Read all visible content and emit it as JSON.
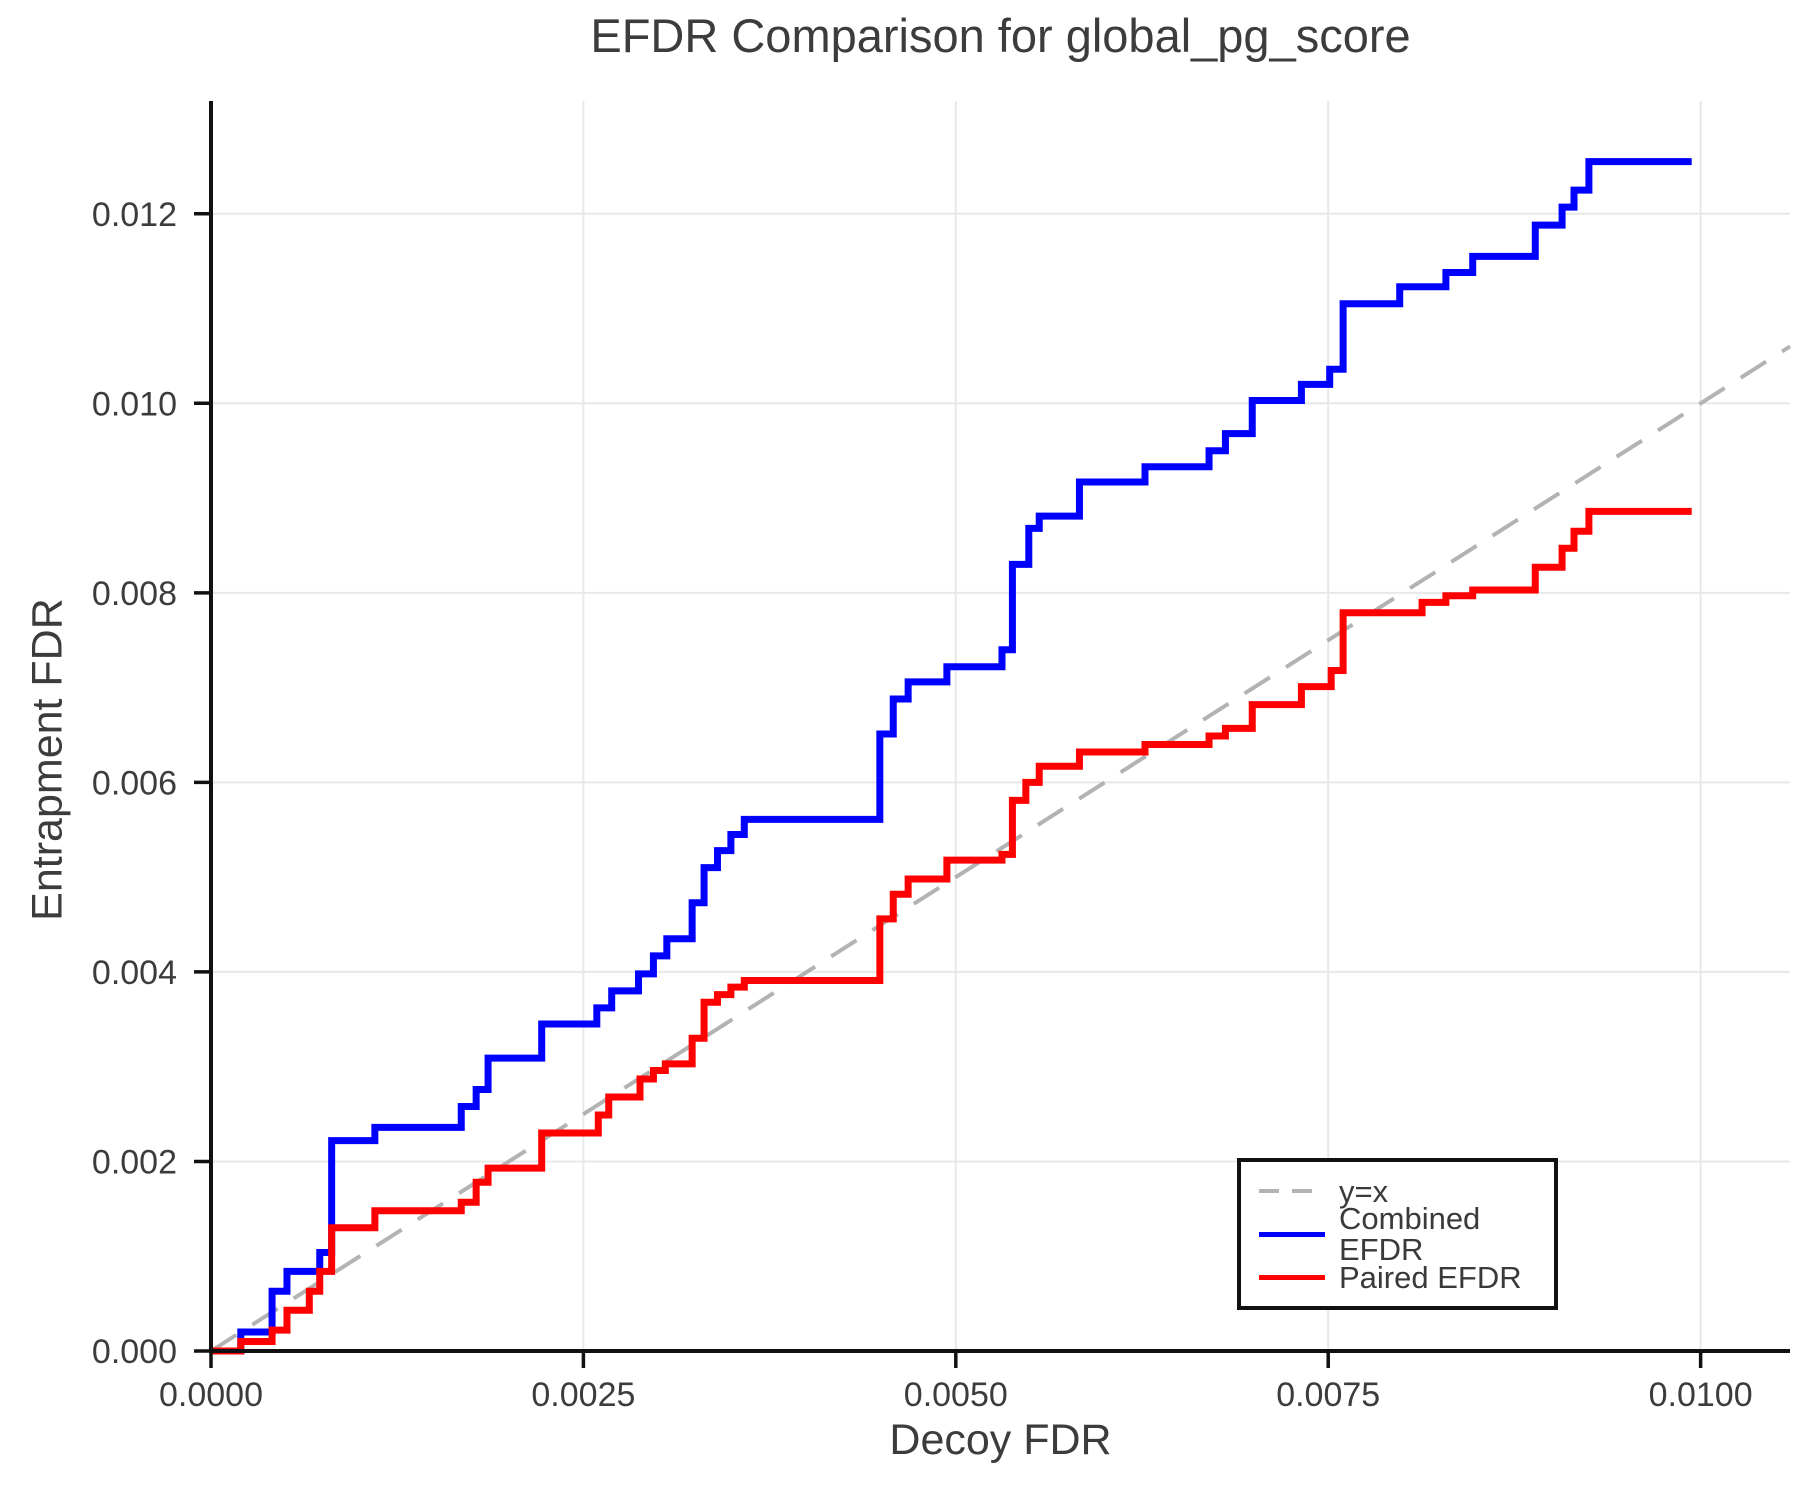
{
  "figure": {
    "title": "EFDR Comparison for global_pg_score"
  },
  "chart_data": {
    "type": "line",
    "subtype": "step-post",
    "title": "EFDR Comparison for global_pg_score",
    "xlabel": "Decoy FDR",
    "ylabel": "Entrapment FDR",
    "xlim": [
      0,
      0.0106
    ],
    "ylim": [
      0,
      0.01319
    ],
    "grid": true,
    "legend_position": "lower right",
    "x_ticks": {
      "values": [
        0.0,
        0.0025,
        0.005,
        0.0075,
        0.01
      ],
      "labels": [
        "0.0000",
        "0.0025",
        "0.0050",
        "0.0075",
        "0.0100"
      ]
    },
    "y_ticks": {
      "values": [
        0.0,
        0.002,
        0.004,
        0.006,
        0.008,
        0.01,
        0.012
      ],
      "labels": [
        "0.000",
        "0.002",
        "0.004",
        "0.006",
        "0.008",
        "0.010",
        "0.012"
      ]
    },
    "series": [
      {
        "name": "y=x",
        "type": "reference-diagonal",
        "style": "dashed",
        "color": "#b3b3b3",
        "from": [
          0,
          0
        ],
        "to": [
          0.0106,
          0.0106
        ]
      },
      {
        "name": "Combined EFDR",
        "type": "step",
        "style": "solid",
        "color": "#0000ff",
        "start": [
          0,
          0
        ],
        "end_x": 0.00994,
        "points": [
          [
            0.0002,
            0.0002
          ],
          [
            0.00041,
            0.00063
          ],
          [
            0.00051,
            0.00084
          ],
          [
            0.00073,
            0.00104
          ],
          [
            0.00081,
            0.00222
          ],
          [
            0.0011,
            0.00236
          ],
          [
            0.00168,
            0.00258
          ],
          [
            0.00178,
            0.00276
          ],
          [
            0.00186,
            0.00309
          ],
          [
            0.00222,
            0.00345
          ],
          [
            0.00259,
            0.00362
          ],
          [
            0.00269,
            0.0038
          ],
          [
            0.00287,
            0.00398
          ],
          [
            0.00297,
            0.00417
          ],
          [
            0.00306,
            0.00435
          ],
          [
            0.00323,
            0.00473
          ],
          [
            0.00331,
            0.0051
          ],
          [
            0.0034,
            0.00528
          ],
          [
            0.00349,
            0.00545
          ],
          [
            0.00358,
            0.00561
          ],
          [
            0.00449,
            0.00651
          ],
          [
            0.00458,
            0.00688
          ],
          [
            0.00468,
            0.00706
          ],
          [
            0.00494,
            0.00722
          ],
          [
            0.00531,
            0.0074
          ],
          [
            0.00538,
            0.0083
          ],
          [
            0.00549,
            0.00868
          ],
          [
            0.00556,
            0.00881
          ],
          [
            0.00583,
            0.00917
          ],
          [
            0.00627,
            0.00933
          ],
          [
            0.0067,
            0.0095
          ],
          [
            0.00681,
            0.00968
          ],
          [
            0.00699,
            0.01003
          ],
          [
            0.00732,
            0.0102
          ],
          [
            0.00751,
            0.01036
          ],
          [
            0.0076,
            0.01105
          ],
          [
            0.00798,
            0.01123
          ],
          [
            0.00829,
            0.01138
          ],
          [
            0.00847,
            0.01155
          ],
          [
            0.00889,
            0.01188
          ],
          [
            0.00907,
            0.01207
          ],
          [
            0.00915,
            0.01225
          ],
          [
            0.00925,
            0.01255
          ]
        ]
      },
      {
        "name": "Paired EFDR",
        "type": "step",
        "style": "solid",
        "color": "#ff0000",
        "start": [
          0,
          0
        ],
        "end_x": 0.00994,
        "points": [
          [
            0.0002,
            0.0001
          ],
          [
            0.00041,
            0.00022
          ],
          [
            0.00051,
            0.00043
          ],
          [
            0.00066,
            0.00063
          ],
          [
            0.00073,
            0.00084
          ],
          [
            0.00081,
            0.0013
          ],
          [
            0.0011,
            0.00148
          ],
          [
            0.00168,
            0.00157
          ],
          [
            0.00178,
            0.00178
          ],
          [
            0.00186,
            0.00193
          ],
          [
            0.00222,
            0.0023
          ],
          [
            0.0026,
            0.00249
          ],
          [
            0.00267,
            0.00268
          ],
          [
            0.00288,
            0.00287
          ],
          [
            0.00297,
            0.00296
          ],
          [
            0.00305,
            0.00303
          ],
          [
            0.00323,
            0.0033
          ],
          [
            0.00331,
            0.00368
          ],
          [
            0.0034,
            0.00376
          ],
          [
            0.00349,
            0.00384
          ],
          [
            0.00358,
            0.00391
          ],
          [
            0.00449,
            0.00456
          ],
          [
            0.00458,
            0.00482
          ],
          [
            0.00468,
            0.00498
          ],
          [
            0.00494,
            0.00518
          ],
          [
            0.00531,
            0.00524
          ],
          [
            0.00538,
            0.00581
          ],
          [
            0.00547,
            0.006
          ],
          [
            0.00556,
            0.00617
          ],
          [
            0.00583,
            0.00632
          ],
          [
            0.00627,
            0.0064
          ],
          [
            0.0067,
            0.00649
          ],
          [
            0.00681,
            0.00657
          ],
          [
            0.00699,
            0.00682
          ],
          [
            0.00732,
            0.00701
          ],
          [
            0.00752,
            0.00718
          ],
          [
            0.0076,
            0.00779
          ],
          [
            0.00813,
            0.0079
          ],
          [
            0.00829,
            0.00797
          ],
          [
            0.00847,
            0.00803
          ],
          [
            0.00889,
            0.00827
          ],
          [
            0.00907,
            0.00847
          ],
          [
            0.00915,
            0.00865
          ],
          [
            0.00925,
            0.00886
          ]
        ]
      }
    ]
  }
}
